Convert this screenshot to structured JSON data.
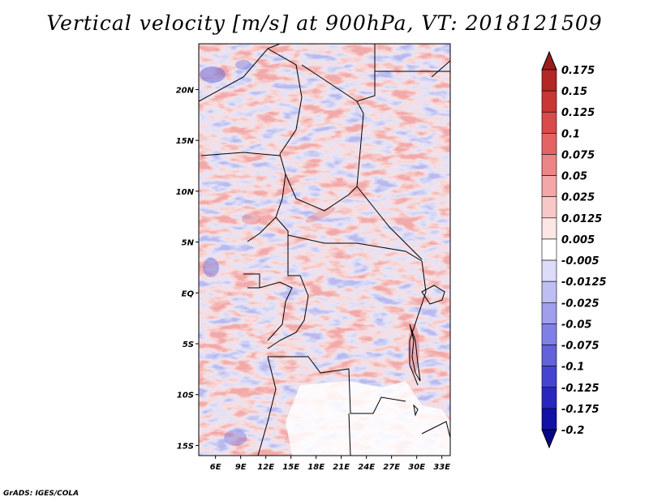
{
  "title": "Vertical velocity [m/s] at 900hPa, VT: 2018121509",
  "credit": "GrADS: IGES/COLA",
  "map": {
    "lon_range": [
      4,
      34
    ],
    "lat_range": [
      -16,
      24.5
    ],
    "lat_ticks": [
      "20N",
      "15N",
      "10N",
      "5N",
      "EQ",
      "5S",
      "10S",
      "15S"
    ],
    "lon_ticks": [
      "6E",
      "9E",
      "12E",
      "15E",
      "18E",
      "21E",
      "24E",
      "27E",
      "30E",
      "33E"
    ]
  },
  "colorbar": {
    "labels": [
      "0.175",
      "0.15",
      "0.125",
      "0.1",
      "0.075",
      "0.05",
      "0.025",
      "0.0125",
      "0.005",
      "-0.005",
      "-0.0125",
      "-0.025",
      "-0.05",
      "-0.075",
      "-0.1",
      "-0.125",
      "-0.175",
      "-0.2"
    ],
    "colors": [
      "#9b1c1c",
      "#b32727",
      "#c83636",
      "#d94a4a",
      "#e46464",
      "#ec8585",
      "#f3a7a7",
      "#f8c8c8",
      "#fce6e6",
      "#ffffff",
      "#dcdcf8",
      "#bebef3",
      "#9f9fec",
      "#8080e4",
      "#6262db",
      "#4444d0",
      "#2727c0",
      "#1111a6",
      "#060688"
    ]
  }
}
